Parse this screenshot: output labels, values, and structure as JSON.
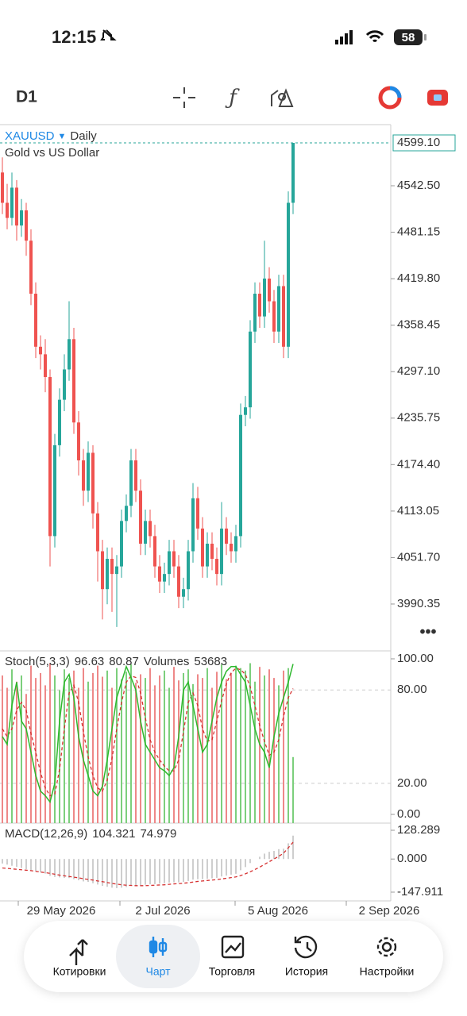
{
  "status_bar": {
    "time": "12:15",
    "battery": "58"
  },
  "toolbar": {
    "timeframe": "D1"
  },
  "chart": {
    "type": "candlestick",
    "symbol": "XAUUSD",
    "period": "Daily",
    "description": "Gold vs US Dollar",
    "ylim": [
      3928.5,
      4623.2
    ],
    "yticks": [
      {
        "value": 4542.5,
        "label": "4542.50"
      },
      4481.15,
      {
        "value": 4419.8,
        "label": "4419.80"
      },
      4358.45,
      {
        "value": 4297.1,
        "label": "4297.10"
      },
      4235.75,
      {
        "value": 4174.4,
        "label": "4174.40"
      },
      4113.05,
      {
        "value": 4051.7,
        "label": "4051.70"
      },
      3990.35
    ],
    "last_price": {
      "value": 4599.1,
      "label": "4599.10"
    },
    "up_color": "#26a69a",
    "down_color": "#ef5350",
    "candles": [
      [
        4560,
        4580,
        4505,
        4520
      ],
      [
        4520,
        4545,
        4485,
        4500
      ],
      [
        4500,
        4560,
        4490,
        4540
      ],
      [
        4540,
        4550,
        4470,
        4490
      ],
      [
        4490,
        4525,
        4475,
        4510
      ],
      [
        4510,
        4520,
        4450,
        4470
      ],
      [
        4470,
        4485,
        4385,
        4400
      ],
      [
        4400,
        4415,
        4315,
        4330
      ],
      [
        4330,
        4345,
        4300,
        4320
      ],
      [
        4320,
        4340,
        4270,
        4290
      ],
      [
        4290,
        4300,
        4040,
        4080
      ],
      [
        4080,
        4215,
        4065,
        4200
      ],
      [
        4200,
        4275,
        4185,
        4260
      ],
      [
        4260,
        4320,
        4245,
        4300
      ],
      [
        4300,
        4390,
        4285,
        4340
      ],
      [
        4340,
        4355,
        4215,
        4230
      ],
      [
        4230,
        4245,
        4160,
        4180
      ],
      [
        4180,
        4195,
        4120,
        4140
      ],
      [
        4140,
        4205,
        4125,
        4190
      ],
      [
        4190,
        4200,
        4090,
        4110
      ],
      [
        4110,
        4125,
        4020,
        4060
      ],
      [
        4060,
        4075,
        3970,
        4010
      ],
      [
        4010,
        4065,
        3990,
        4050
      ],
      [
        4050,
        4065,
        3980,
        4030
      ],
      [
        4030,
        4055,
        3960,
        4040
      ],
      [
        4040,
        4115,
        4025,
        4100
      ],
      [
        4100,
        4135,
        4085,
        4120
      ],
      [
        4120,
        4195,
        4105,
        4180
      ],
      [
        4180,
        4195,
        4125,
        4140
      ],
      [
        4140,
        4155,
        4055,
        4070
      ],
      [
        4070,
        4115,
        4055,
        4100
      ],
      [
        4100,
        4115,
        4065,
        4080
      ],
      [
        4080,
        4095,
        4025,
        4040
      ],
      [
        4040,
        4055,
        4005,
        4020
      ],
      [
        4020,
        4045,
        4005,
        4030
      ],
      [
        4030,
        4075,
        4015,
        4060
      ],
      [
        4060,
        4075,
        4025,
        4040
      ],
      [
        4040,
        4055,
        3985,
        4000
      ],
      [
        4000,
        4025,
        3985,
        4010
      ],
      [
        4010,
        4075,
        3995,
        4060
      ],
      [
        4060,
        4150,
        4045,
        4130
      ],
      [
        4130,
        4145,
        4075,
        4090
      ],
      [
        4090,
        4105,
        4025,
        4040
      ],
      [
        4040,
        4085,
        4025,
        4070
      ],
      [
        4070,
        4085,
        4035,
        4050
      ],
      [
        4050,
        4065,
        4015,
        4030
      ],
      [
        4030,
        4125,
        4015,
        4090
      ],
      [
        4090,
        4105,
        4055,
        4070
      ],
      [
        4070,
        4085,
        4045,
        4060
      ],
      [
        4060,
        4095,
        4045,
        4080
      ],
      [
        4080,
        4255,
        4065,
        4240
      ],
      [
        4240,
        4265,
        4225,
        4250
      ],
      [
        4250,
        4365,
        4235,
        4350
      ],
      [
        4350,
        4415,
        4335,
        4400
      ],
      [
        4400,
        4415,
        4355,
        4370
      ],
      [
        4370,
        4470,
        4355,
        4420
      ],
      [
        4420,
        4435,
        4375,
        4390
      ],
      [
        4390,
        4405,
        4335,
        4350
      ],
      [
        4350,
        4425,
        4335,
        4410
      ],
      [
        4410,
        4425,
        4315,
        4330
      ],
      [
        4330,
        4535,
        4315,
        4520
      ],
      [
        4520,
        4599.1,
        4505,
        4599.1
      ]
    ],
    "x_labels": [
      "29 May 2026",
      "2 Jul 2026",
      "5 Aug 2026",
      "2 Sep 2026"
    ]
  },
  "stochastic": {
    "name": "Stoch(5,3,3)",
    "k_value": 96.63,
    "d_value": 80.87,
    "volume_name": "Volumes",
    "volume_value": 53683,
    "ylim": [
      -5.6,
      105.1
    ],
    "yticks": [
      {
        "value": 100,
        "label": "100.00"
      },
      {
        "value": 80,
        "label": "80.00"
      },
      {
        "value": 20,
        "label": "20.00"
      },
      {
        "value": 0,
        "label": "0.00"
      }
    ],
    "k_color": "#2db82d",
    "d_color": "#d63030",
    "k": [
      50,
      45,
      70,
      85,
      60,
      55,
      40,
      25,
      15,
      12,
      8,
      20,
      60,
      85,
      90,
      75,
      50,
      35,
      25,
      15,
      12,
      18,
      35,
      55,
      75,
      85,
      95,
      88,
      80,
      60,
      45,
      40,
      35,
      30,
      28,
      25,
      30,
      50,
      80,
      85,
      70,
      55,
      40,
      45,
      60,
      75,
      85,
      92,
      95,
      95,
      90,
      85,
      70,
      55,
      45,
      40,
      30,
      50,
      65,
      75,
      85,
      96.63
    ],
    "d": [
      55,
      50,
      55,
      67,
      72,
      67,
      52,
      40,
      27,
      17,
      12,
      13,
      29,
      55,
      78,
      83,
      72,
      53,
      37,
      25,
      17,
      15,
      22,
      36,
      55,
      72,
      85,
      89,
      88,
      78,
      62,
      48,
      40,
      35,
      31,
      28,
      28,
      35,
      53,
      72,
      78,
      70,
      55,
      47,
      48,
      60,
      73,
      84,
      91,
      94,
      93,
      90,
      82,
      70,
      57,
      47,
      38,
      40,
      48,
      63,
      75,
      80.87
    ],
    "volume_lim": [
      0,
      140000
    ],
    "volumes": [
      120000,
      110000,
      125000,
      115000,
      120000,
      105000,
      128000,
      118000,
      122000,
      112000,
      130000,
      120000,
      108000,
      125000,
      118000,
      124000,
      110000,
      126000,
      115000,
      122000,
      128000,
      119000,
      124000,
      110000,
      126000,
      117000,
      123000,
      129000,
      114000,
      121000,
      118000,
      126000,
      112000,
      120000,
      124000,
      110000,
      127000,
      116000,
      122000,
      125000,
      113000,
      121000,
      118000,
      126000,
      110000,
      123000,
      129000,
      117000,
      122000,
      128000,
      126000,
      124000,
      130000,
      115000,
      127000,
      120000,
      125000,
      118000,
      112000,
      124000,
      126000,
      53683
    ]
  },
  "macd": {
    "name": "MACD(12,26,9)",
    "macd_value": 104.321,
    "signal_value": 74.979,
    "ylim": [
      -187,
      160.2
    ],
    "yticks": [
      128.289,
      {
        "value": 0,
        "label": "0.000"
      },
      -147.911
    ],
    "bar_color": "#bdbdbd",
    "signal_color": "#d63030",
    "macd": [
      -20,
      -25,
      -30,
      -35,
      -40,
      -45,
      -50,
      -55,
      -60,
      -65,
      -75,
      -80,
      -82,
      -84,
      -85,
      -90,
      -95,
      -100,
      -102,
      -108,
      -114,
      -120,
      -124,
      -128,
      -130,
      -128,
      -125,
      -120,
      -118,
      -118,
      -115,
      -113,
      -112,
      -110,
      -108,
      -105,
      -104,
      -104,
      -102,
      -98,
      -92,
      -90,
      -90,
      -88,
      -86,
      -84,
      -78,
      -74,
      -70,
      -66,
      -50,
      -36,
      -18,
      0,
      10,
      24,
      32,
      36,
      44,
      46,
      70,
      104.321
    ],
    "signal": [
      -40,
      -42,
      -44,
      -46,
      -48,
      -50,
      -52,
      -55,
      -58,
      -61,
      -64,
      -68,
      -72,
      -75,
      -78,
      -81,
      -84,
      -88,
      -91,
      -94,
      -98,
      -101,
      -105,
      -109,
      -112,
      -115,
      -117,
      -118,
      -119,
      -119,
      -119,
      -118,
      -117,
      -116,
      -115,
      -113,
      -111,
      -110,
      -108,
      -106,
      -103,
      -100,
      -98,
      -96,
      -94,
      -92,
      -89,
      -86,
      -83,
      -80,
      -74,
      -66,
      -57,
      -47,
      -36,
      -24,
      -12,
      0,
      12,
      26,
      50,
      74.979
    ]
  },
  "nav": {
    "items": [
      "Котировки",
      "Чарт",
      "Торговля",
      "История",
      "Настройки"
    ],
    "active": 1
  }
}
